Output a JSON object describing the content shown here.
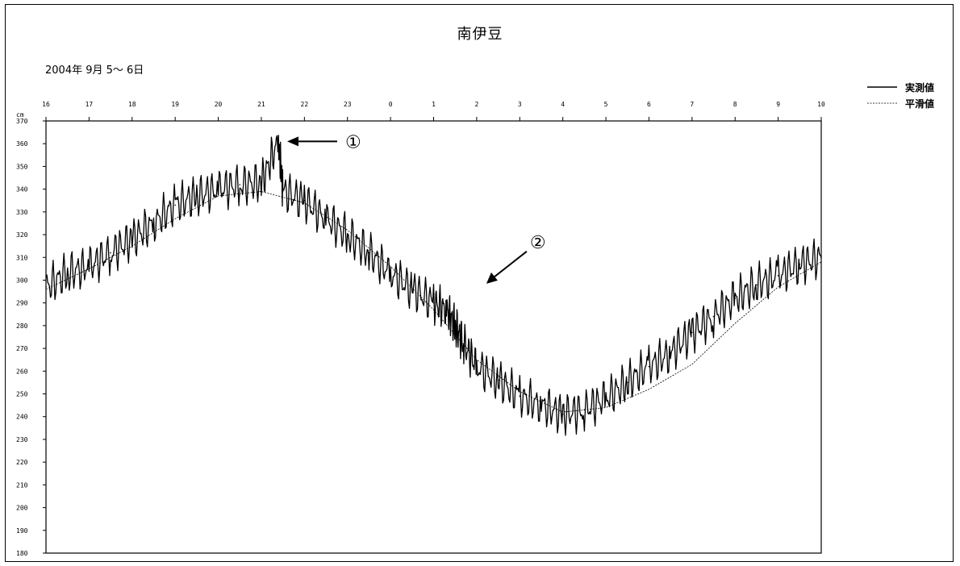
{
  "chart_data": {
    "type": "line",
    "title": "南伊豆",
    "subtitle": "2004年 9月 5～ 6日",
    "ylabel": "cm",
    "x_ticks": [
      "16",
      "17",
      "18",
      "19",
      "20",
      "21",
      "22",
      "23",
      "0",
      "1",
      "2",
      "3",
      "4",
      "5",
      "6",
      "7",
      "8",
      "9",
      "10"
    ],
    "x_range_hours": [
      16,
      34
    ],
    "ylim": [
      180,
      370
    ],
    "y_ticks": [
      "370",
      "360",
      "350",
      "340",
      "330",
      "320",
      "310",
      "300",
      "290",
      "280",
      "270",
      "260",
      "250",
      "240",
      "230",
      "220",
      "210",
      "200",
      "190",
      "180"
    ],
    "legend_position": "top-right",
    "series": [
      {
        "name": "実測値",
        "style": "thick",
        "color": "#000000",
        "x": [
          16.0,
          16.5,
          17.0,
          17.5,
          18.0,
          18.5,
          19.0,
          19.5,
          20.0,
          20.5,
          21.0,
          21.4,
          21.5,
          22.0,
          22.5,
          23.0,
          23.5,
          24.0,
          24.5,
          25.0,
          25.3,
          25.5,
          25.7,
          26.0,
          26.5,
          27.0,
          27.5,
          28.0,
          28.5,
          29.0,
          29.5,
          30.0,
          30.5,
          31.0,
          31.5,
          32.0,
          32.5,
          33.0,
          33.5,
          34.0
        ],
        "values": [
          297,
          303,
          306,
          312,
          318,
          325,
          333,
          337,
          340,
          342,
          343,
          361,
          339,
          335,
          327,
          320,
          312,
          303,
          296,
          290,
          287,
          280,
          272,
          262,
          256,
          249,
          245,
          241,
          243,
          248,
          255,
          262,
          268,
          277,
          284,
          292,
          298,
          302,
          307,
          310
        ]
      },
      {
        "name": "平滑値",
        "style": "thin",
        "color": "#000000",
        "x": [
          16,
          17,
          18,
          19,
          20,
          21,
          22,
          23,
          24,
          25,
          26,
          27,
          28,
          29,
          30,
          31,
          32,
          33,
          34
        ],
        "values": [
          296,
          305,
          315,
          327,
          337,
          339,
          334,
          322,
          306,
          287,
          265,
          251,
          242,
          244,
          252,
          263,
          281,
          297,
          308
        ]
      }
    ],
    "annotations": [
      {
        "label": "①",
        "x": 21.6,
        "y": 361
      },
      {
        "label": "②",
        "x": 26.3,
        "y": 302
      }
    ]
  }
}
